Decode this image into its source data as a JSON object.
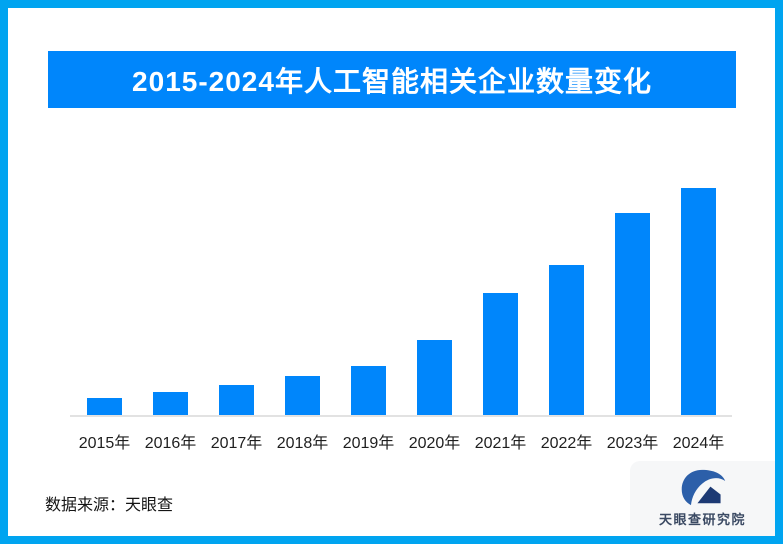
{
  "colors": {
    "border": "#00a4f0",
    "accent": "#0086fb",
    "bar": "#0086fb",
    "title_text": "#ffffff",
    "axis_line": "#e2e2e2",
    "label_text": "#1f1f1f",
    "source_text": "#141414",
    "logo_card_bg": "#f6f7f8",
    "logo_blue": "#2c5fa9",
    "logo_navy": "#1d3a74",
    "logo_text": "#3b4a63"
  },
  "header": {
    "title": "2015-2024年人工智能相关企业数量变化"
  },
  "chart_data": {
    "type": "bar",
    "title": "2015-2024年人工智能相关企业数量变化",
    "categories": [
      "2015年",
      "2016年",
      "2017年",
      "2018年",
      "2019年",
      "2020年",
      "2021年",
      "2022年",
      "2023年",
      "2024年"
    ],
    "values": [
      18,
      24,
      31,
      40,
      50,
      76,
      123,
      151,
      203,
      228
    ],
    "values_note": "no y-axis ticks or data labels visible; values are relative bar heights (2024 tallest = 228)",
    "xlabel": "",
    "ylabel": "",
    "ylim": [
      0,
      240
    ],
    "grid": false,
    "legend": false,
    "y_axis_visible": false,
    "bar_color": "#0086fb"
  },
  "footer": {
    "source": "数据来源：天眼查",
    "logo_text": "天眼查研究院"
  }
}
